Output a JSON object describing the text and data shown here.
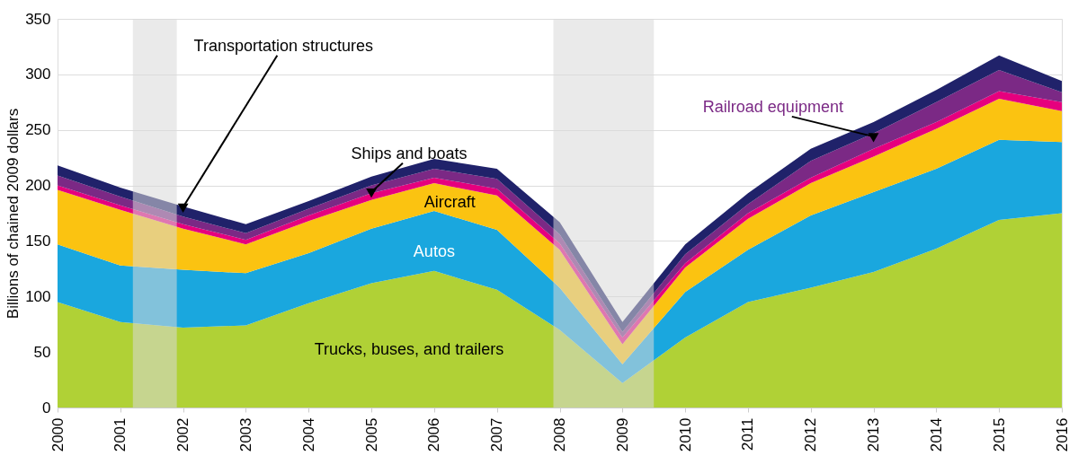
{
  "chart_data": {
    "type": "area",
    "stacked": true,
    "ylabel": "Billions of chained 2009 dollars",
    "x": [
      2000,
      2001,
      2002,
      2003,
      2004,
      2005,
      2006,
      2007,
      2008,
      2009,
      2010,
      2011,
      2012,
      2013,
      2014,
      2015,
      2016
    ],
    "xlim": [
      2000,
      2016
    ],
    "xticks": [
      2000,
      2001,
      2002,
      2003,
      2004,
      2005,
      2006,
      2007,
      2008,
      2009,
      2010,
      2011,
      2012,
      2013,
      2014,
      2015,
      2016
    ],
    "ylim": [
      0,
      350
    ],
    "yticks": [
      0,
      50,
      100,
      150,
      200,
      250,
      300,
      350
    ],
    "grid": "y",
    "series": [
      {
        "name": "Trucks, buses, and trailers",
        "color": "#b0d136",
        "values": [
          95,
          77,
          72,
          74,
          94,
          112,
          123,
          106,
          70,
          22,
          63,
          95,
          108,
          122,
          143,
          169,
          175
        ]
      },
      {
        "name": "Autos",
        "color": "#1aa7de",
        "values": [
          52,
          51,
          52,
          47,
          45,
          49,
          54,
          54,
          38,
          17,
          41,
          47,
          65,
          72,
          72,
          72,
          64
        ]
      },
      {
        "name": "Aircraft",
        "color": "#fbc311",
        "values": [
          49,
          50,
          37,
          26,
          29,
          26,
          25,
          31,
          34,
          18,
          22,
          28,
          29,
          32,
          36,
          37,
          28
        ]
      },
      {
        "name": "Ships and boats",
        "color": "#e6007e",
        "values": [
          4,
          4,
          4,
          4,
          5,
          6,
          5,
          6,
          6,
          6,
          4,
          5,
          5,
          7,
          6,
          7,
          8
        ]
      },
      {
        "name": "Railroad equipment",
        "color": "#7b2985",
        "values": [
          9,
          8,
          7,
          6,
          6,
          7,
          8,
          9,
          8,
          5,
          8,
          8,
          15,
          14,
          18,
          19,
          9
        ]
      },
      {
        "name": "Transportation structures",
        "color": "#20226a",
        "values": [
          9,
          8,
          9,
          8,
          7,
          8,
          9,
          9,
          11,
          9,
          9,
          10,
          11,
          10,
          11,
          13,
          10
        ]
      }
    ],
    "bands": [
      {
        "axis": "x",
        "from": 2001.2,
        "to": 2001.9,
        "color": "#d9d9d9"
      },
      {
        "axis": "x",
        "from": 2007.9,
        "to": 2009.5,
        "color": "#d9d9d9"
      }
    ]
  }
}
